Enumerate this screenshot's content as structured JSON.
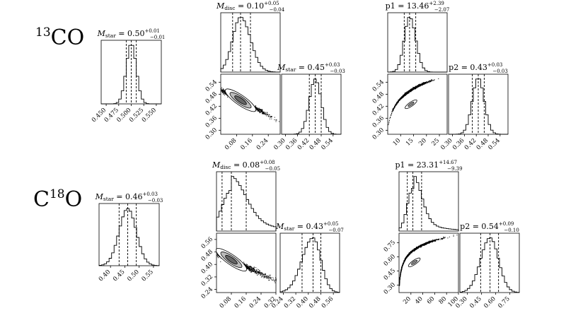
{
  "rows": [
    {
      "label_sup": "13",
      "label_main": "CO",
      "panels": [
        {
          "title": "M_star = 0.50 +0.01 −0.01",
          "type": "hist",
          "median": 0.5,
          "q16": 0.49,
          "q84": 0.51,
          "xlim": [
            0.44,
            0.56
          ],
          "xticks": [
            "0.450",
            "0.475",
            "0.500",
            "0.525",
            "0.550"
          ]
        },
        {
          "title": "M_disc = 0.10 +0.05 −0.04",
          "type": "hist",
          "median": 0.1,
          "q16": 0.06,
          "q84": 0.15,
          "xlim": [
            0.0,
            0.3
          ]
        },
        {
          "type": "scatter",
          "xlim": [
            0.0,
            0.3
          ],
          "ylim": [
            0.28,
            0.58
          ],
          "xticks": [
            "0.08",
            "0.16",
            "0.24"
          ],
          "yticks": [
            "0.54",
            "0.48",
            "0.42",
            "0.36",
            "0.30"
          ]
        },
        {
          "title": "M_star = 0.45 +0.03 −0.03",
          "type": "hist",
          "median": 0.45,
          "q16": 0.42,
          "q84": 0.48,
          "xlim": [
            0.28,
            0.58
          ],
          "xticks": [
            "0.30",
            "0.36",
            "0.42",
            "0.48",
            "0.54"
          ]
        },
        {
          "title": "p1 = 13.46 +2.39 −2.07",
          "type": "hist",
          "median": 13.46,
          "q16": 11.39,
          "q84": 15.85,
          "xlim": [
            5,
            28
          ]
        },
        {
          "type": "scatter",
          "xlim": [
            5,
            28
          ],
          "ylim": [
            0.28,
            0.58
          ],
          "xticks": [
            "10",
            "15",
            "20",
            "25"
          ],
          "yticks": [
            "0.54",
            "0.48",
            "0.42",
            "0.36",
            "0.30"
          ]
        },
        {
          "title": "p2 = 0.43 +0.03 −0.03",
          "type": "hist",
          "median": 0.43,
          "q16": 0.4,
          "q84": 0.46,
          "xlim": [
            0.28,
            0.58
          ],
          "xticks": [
            "0.30",
            "0.36",
            "0.42",
            "0.48",
            "0.54"
          ]
        }
      ]
    },
    {
      "label_pre": "C",
      "label_sup": "18",
      "label_main": "O",
      "panels": [
        {
          "title": "M_star = 0.46 +0.03 −0.03",
          "type": "hist",
          "median": 0.46,
          "q16": 0.43,
          "q84": 0.49,
          "xlim": [
            0.36,
            0.57
          ],
          "xticks": [
            "0.40",
            "0.45",
            "0.50",
            "0.55"
          ]
        },
        {
          "title": "M_disc = 0.08 +0.08 −0.05",
          "type": "hist",
          "median": 0.08,
          "q16": 0.03,
          "q84": 0.16,
          "xlim": [
            0.0,
            0.32
          ]
        },
        {
          "type": "scatter",
          "xlim": [
            0.0,
            0.32
          ],
          "ylim": [
            0.22,
            0.6
          ],
          "xticks": [
            "0.08",
            "0.16",
            "0.24",
            "0.32"
          ],
          "yticks": [
            "0.56",
            "0.48",
            "0.40",
            "0.32",
            "0.24"
          ]
        },
        {
          "title": "M_star = 0.43 +0.05 −0.07",
          "type": "hist",
          "median": 0.43,
          "q16": 0.36,
          "q84": 0.48,
          "xlim": [
            0.22,
            0.6
          ],
          "xticks": [
            "0.24",
            "0.32",
            "0.40",
            "0.48",
            "0.56"
          ]
        },
        {
          "title": "p1 = 23.31 +14.67 −9.39",
          "type": "hist",
          "median": 23.31,
          "q16": 13.92,
          "q84": 37.98,
          "xlim": [
            0,
            100
          ]
        },
        {
          "type": "scatter",
          "xlim": [
            0,
            100
          ],
          "ylim": [
            0.22,
            0.85
          ],
          "xticks": [
            "20",
            "40",
            "60",
            "80",
            "100"
          ],
          "yticks": [
            "0.75",
            "0.60",
            "0.45",
            "0.30"
          ]
        },
        {
          "title": "p2 = 0.54 +0.09 −0.10",
          "type": "hist",
          "median": 0.54,
          "q16": 0.44,
          "q84": 0.63,
          "xlim": [
            0.22,
            0.85
          ],
          "xticks": [
            "0.30",
            "0.45",
            "0.60",
            "0.75"
          ]
        }
      ]
    }
  ],
  "chart_data": {
    "type": "corner",
    "figures": [
      {
        "tracer": "13CO",
        "parameters": [
          "M_star",
          "M_disc",
          "p1",
          "p2"
        ],
        "series": [
          {
            "name": "M_star",
            "median": 0.5,
            "plus": 0.01,
            "minus": 0.01
          },
          {
            "name": "M_disc",
            "median": 0.1,
            "plus": 0.05,
            "minus": 0.04
          },
          {
            "name": "M_star",
            "median": 0.45,
            "plus": 0.03,
            "minus": 0.03
          },
          {
            "name": "p1",
            "median": 13.46,
            "plus": 2.39,
            "minus": 2.07
          },
          {
            "name": "p2",
            "median": 0.43,
            "plus": 0.03,
            "minus": 0.03
          }
        ]
      },
      {
        "tracer": "C18O",
        "parameters": [
          "M_star",
          "M_disc",
          "p1",
          "p2"
        ],
        "series": [
          {
            "name": "M_star",
            "median": 0.46,
            "plus": 0.03,
            "minus": 0.03
          },
          {
            "name": "M_disc",
            "median": 0.08,
            "plus": 0.08,
            "minus": 0.05
          },
          {
            "name": "M_star",
            "median": 0.43,
            "plus": 0.05,
            "minus": 0.07
          },
          {
            "name": "p1",
            "median": 23.31,
            "plus": 14.67,
            "minus": 9.39
          },
          {
            "name": "p2",
            "median": 0.54,
            "plus": 0.09,
            "minus": 0.1
          }
        ]
      }
    ]
  }
}
